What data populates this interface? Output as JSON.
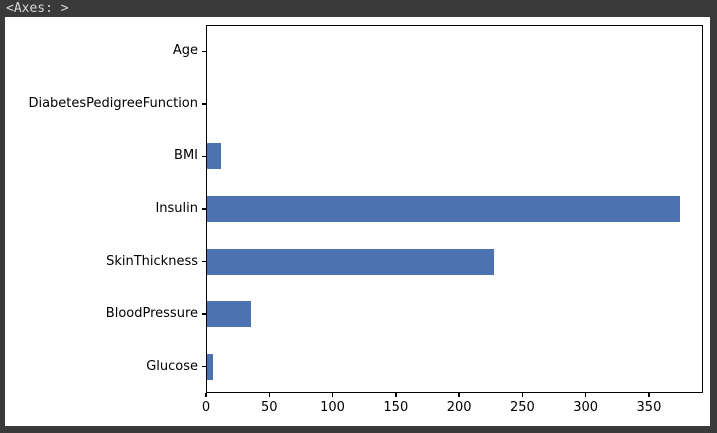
{
  "window": {
    "repr_text": "<Axes: >"
  },
  "colors": {
    "frame_background": "#3a3a3a",
    "repr_text_color": "#d8d8d8",
    "figure_background": "#ffffff",
    "axis_color": "#000000",
    "bar_color": "#4c72b0"
  },
  "chart_data": {
    "type": "bar",
    "orientation": "horizontal",
    "title": "",
    "xlabel": "",
    "ylabel": "",
    "category_order": "top-to-bottom",
    "categories": [
      "Age",
      "DiabetesPedigreeFunction",
      "BMI",
      "Insulin",
      "SkinThickness",
      "BloodPressure",
      "Glucose"
    ],
    "values": [
      0,
      0,
      11,
      374,
      227,
      35,
      5
    ],
    "xticks": [
      0,
      50,
      100,
      150,
      200,
      250,
      300,
      350
    ],
    "xlim": [
      0,
      392.7
    ],
    "bar_height_fraction": 0.5,
    "grid": false,
    "legend": false
  }
}
